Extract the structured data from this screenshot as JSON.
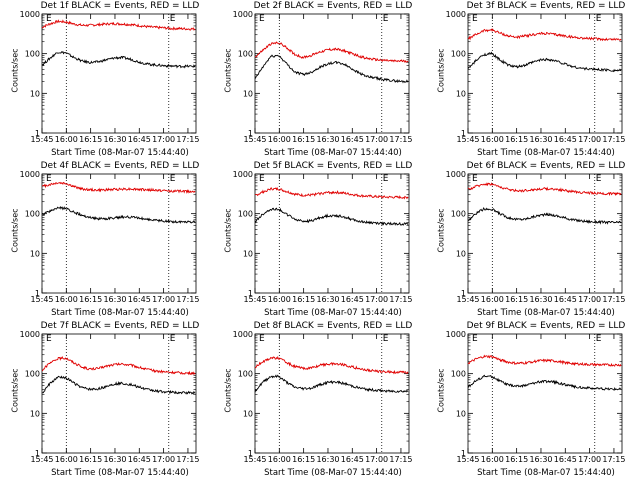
{
  "colors": {
    "events": "#000000",
    "lld": "#e00000",
    "axis": "#000000",
    "background": "#ffffff"
  },
  "x_axis": {
    "label": "Start Time (08-Mar-07 15:44:40)",
    "ticks": [
      "15:45",
      "16:00",
      "16:15",
      "16:30",
      "16:45",
      "17:00",
      "17:15"
    ],
    "range_minutes": [
      0.33,
      95.3
    ]
  },
  "y_axis": {
    "label": "Counts/sec",
    "scale": "log",
    "range": [
      1,
      1000
    ],
    "ticks": [
      "1",
      "10",
      "100",
      "1000"
    ]
  },
  "marker_glyph": "E",
  "chart_data": [
    {
      "type": "line",
      "title": "Det 1f BLACK = Events, RED = LLD",
      "x": [
        0,
        5,
        10,
        15,
        20,
        25,
        30,
        35,
        40,
        45,
        50,
        55,
        60,
        65,
        70,
        75,
        80,
        85,
        90,
        95
      ],
      "series": [
        {
          "color": "red",
          "values": [
            460,
            560,
            650,
            630,
            560,
            520,
            520,
            540,
            560,
            570,
            560,
            540,
            510,
            480,
            460,
            450,
            430,
            430,
            420,
            420
          ]
        },
        {
          "color": "black",
          "values": [
            50,
            75,
            110,
            105,
            80,
            65,
            60,
            62,
            70,
            78,
            80,
            72,
            62,
            55,
            52,
            50,
            49,
            48,
            48,
            48
          ]
        }
      ]
    },
    {
      "type": "line",
      "title": "Det 2f BLACK = Events, RED = LLD",
      "x": [
        0,
        5,
        10,
        15,
        20,
        25,
        30,
        35,
        40,
        45,
        50,
        55,
        60,
        65,
        70,
        75,
        80,
        85,
        90,
        95
      ],
      "series": [
        {
          "color": "red",
          "values": [
            80,
            120,
            175,
            190,
            140,
            95,
            80,
            90,
            110,
            125,
            130,
            120,
            100,
            85,
            75,
            70,
            68,
            65,
            65,
            65
          ]
        },
        {
          "color": "black",
          "values": [
            22,
            45,
            85,
            90,
            55,
            34,
            30,
            34,
            45,
            55,
            60,
            55,
            42,
            32,
            26,
            24,
            22,
            21,
            20,
            20
          ]
        }
      ]
    },
    {
      "type": "line",
      "title": "Det 3f BLACK = Events, RED = LLD",
      "x": [
        0,
        5,
        10,
        15,
        20,
        25,
        30,
        35,
        40,
        45,
        50,
        55,
        60,
        65,
        70,
        75,
        80,
        85,
        90,
        95
      ],
      "series": [
        {
          "color": "red",
          "values": [
            230,
            300,
            380,
            400,
            330,
            280,
            260,
            275,
            300,
            320,
            320,
            300,
            280,
            260,
            250,
            240,
            235,
            230,
            230,
            230
          ]
        },
        {
          "color": "black",
          "values": [
            40,
            65,
            95,
            100,
            70,
            52,
            46,
            50,
            60,
            70,
            72,
            65,
            55,
            47,
            43,
            41,
            40,
            39,
            38,
            38
          ]
        }
      ]
    },
    {
      "type": "line",
      "title": "Det 4f BLACK = Events, RED = LLD",
      "x": [
        0,
        5,
        10,
        15,
        20,
        25,
        30,
        35,
        40,
        45,
        50,
        55,
        60,
        65,
        70,
        75,
        80,
        85,
        90,
        95
      ],
      "series": [
        {
          "color": "red",
          "values": [
            480,
            540,
            600,
            580,
            480,
            420,
            400,
            390,
            400,
            410,
            420,
            420,
            410,
            400,
            390,
            380,
            370,
            370,
            365,
            365
          ]
        },
        {
          "color": "black",
          "values": [
            90,
            115,
            140,
            135,
            110,
            90,
            80,
            75,
            75,
            78,
            82,
            82,
            78,
            72,
            68,
            65,
            63,
            62,
            62,
            62
          ]
        }
      ]
    },
    {
      "type": "line",
      "title": "Det 5f BLACK = Events, RED = LLD",
      "x": [
        0,
        5,
        10,
        15,
        20,
        25,
        30,
        35,
        40,
        45,
        50,
        55,
        60,
        65,
        70,
        75,
        80,
        85,
        90,
        95
      ],
      "series": [
        {
          "color": "red",
          "values": [
            280,
            350,
            420,
            420,
            360,
            310,
            290,
            295,
            320,
            340,
            345,
            330,
            305,
            285,
            275,
            268,
            262,
            260,
            258,
            258
          ]
        },
        {
          "color": "black",
          "values": [
            60,
            95,
            130,
            130,
            95,
            72,
            64,
            66,
            78,
            88,
            90,
            84,
            72,
            64,
            60,
            58,
            56,
            56,
            55,
            55
          ]
        }
      ]
    },
    {
      "type": "line",
      "title": "Det 6f BLACK = Events, RED = LLD",
      "x": [
        0,
        5,
        10,
        15,
        20,
        25,
        30,
        35,
        40,
        45,
        50,
        55,
        60,
        65,
        70,
        75,
        80,
        85,
        90,
        95
      ],
      "series": [
        {
          "color": "red",
          "values": [
            400,
            480,
            560,
            560,
            470,
            410,
            380,
            380,
            400,
            420,
            425,
            410,
            385,
            360,
            345,
            335,
            325,
            320,
            320,
            320
          ]
        },
        {
          "color": "black",
          "values": [
            65,
            100,
            130,
            130,
            100,
            80,
            72,
            72,
            82,
            92,
            95,
            88,
            78,
            70,
            66,
            63,
            62,
            61,
            60,
            60
          ]
        }
      ]
    },
    {
      "type": "line",
      "title": "Det 7f BLACK = Events, RED = LLD",
      "x": [
        0,
        5,
        10,
        15,
        20,
        25,
        30,
        35,
        40,
        45,
        50,
        55,
        60,
        65,
        70,
        75,
        80,
        85,
        90,
        95
      ],
      "series": [
        {
          "color": "red",
          "values": [
            120,
            180,
            240,
            250,
            190,
            145,
            130,
            135,
            155,
            170,
            175,
            165,
            145,
            128,
            118,
            112,
            108,
            105,
            103,
            103
          ]
        },
        {
          "color": "black",
          "values": [
            30,
            55,
            80,
            80,
            58,
            44,
            40,
            41,
            48,
            55,
            57,
            53,
            46,
            40,
            37,
            35,
            34,
            33,
            33,
            33
          ]
        }
      ]
    },
    {
      "type": "line",
      "title": "Det 8f BLACK = Events, RED = LLD",
      "x": [
        0,
        5,
        10,
        15,
        20,
        25,
        30,
        35,
        40,
        45,
        50,
        55,
        60,
        65,
        70,
        75,
        80,
        85,
        90,
        95
      ],
      "series": [
        {
          "color": "red",
          "values": [
            140,
            200,
            250,
            245,
            190,
            150,
            135,
            140,
            160,
            175,
            178,
            168,
            148,
            132,
            122,
            116,
            112,
            110,
            108,
            108
          ]
        },
        {
          "color": "black",
          "values": [
            35,
            60,
            85,
            85,
            60,
            45,
            42,
            43,
            52,
            60,
            62,
            57,
            49,
            43,
            40,
            38,
            37,
            36,
            36,
            36
          ]
        }
      ]
    },
    {
      "type": "line",
      "title": "Det 9f BLACK = Events, RED = LLD",
      "x": [
        0,
        5,
        10,
        15,
        20,
        25,
        30,
        35,
        40,
        45,
        50,
        55,
        60,
        65,
        70,
        75,
        80,
        85,
        90,
        95
      ],
      "series": [
        {
          "color": "red",
          "values": [
            180,
            230,
            270,
            270,
            225,
            195,
            182,
            185,
            200,
            212,
            214,
            205,
            190,
            180,
            174,
            170,
            168,
            166,
            165,
            165
          ]
        },
        {
          "color": "black",
          "values": [
            45,
            65,
            85,
            85,
            65,
            52,
            48,
            50,
            57,
            63,
            64,
            60,
            53,
            48,
            45,
            43,
            42,
            41,
            41,
            41
          ]
        }
      ]
    }
  ]
}
